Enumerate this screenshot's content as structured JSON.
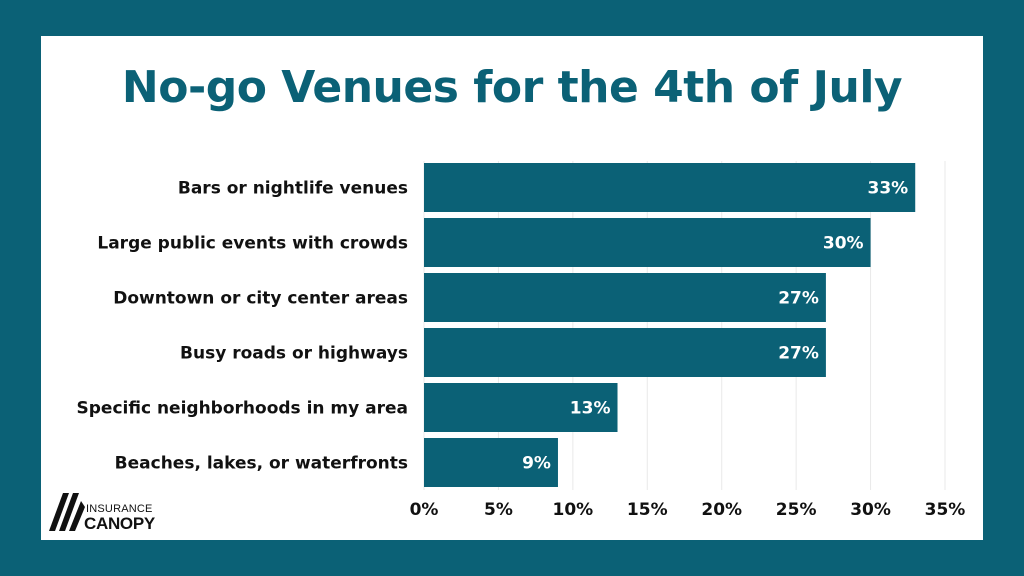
{
  "chart_data": {
    "type": "bar",
    "orientation": "horizontal",
    "title": "No-go Venues for the 4th of July",
    "categories": [
      "Bars or nightlife venues",
      "Large public events with crowds",
      "Downtown or city center areas",
      "Busy roads or highways",
      "Specific neighborhoods in my area",
      "Beaches, lakes, or waterfronts"
    ],
    "values": [
      33,
      30,
      27,
      27,
      13,
      9
    ],
    "value_labels": [
      "33%",
      "30%",
      "27%",
      "27%",
      "13%",
      "9%"
    ],
    "xlim": [
      0,
      35
    ],
    "x_ticks": [
      0,
      5,
      10,
      15,
      20,
      25,
      30,
      35
    ],
    "x_tick_labels": [
      "0%",
      "5%",
      "10%",
      "15%",
      "20%",
      "25%",
      "30%",
      "35%"
    ],
    "grid": "vertical, light",
    "legend": "none",
    "bar_color": "#0b6176"
  },
  "colors": {
    "background": "#0b6176",
    "panel": "#ffffff",
    "title": "#0b6176",
    "bar": "#0b6176",
    "grid": "#e9e9e9",
    "text": "#111111"
  },
  "logo": {
    "line1": "INSURANCE",
    "line2": "CANOPY",
    "icon": "canopy-stripes-logo-icon"
  }
}
